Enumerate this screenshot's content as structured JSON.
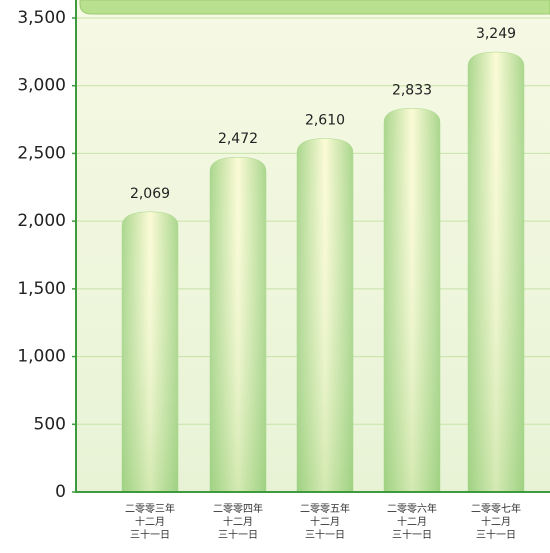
{
  "chart_data": {
    "type": "bar",
    "categories": [
      [
        "二零零三年",
        "十二月",
        "三十一日"
      ],
      [
        "二零零四年",
        "十二月",
        "三十一日"
      ],
      [
        "二零零五年",
        "十二月",
        "三十一日"
      ],
      [
        "二零零六年",
        "十二月",
        "三十一日"
      ],
      [
        "二零零七年",
        "十二月",
        "三十一日"
      ]
    ],
    "values": [
      2069,
      2472,
      2610,
      2833,
      3249
    ],
    "value_labels": [
      "2,069",
      "2,472",
      "2,610",
      "2,833",
      "3,249"
    ],
    "color": "#a9d68c",
    "ylim": [
      0,
      3500
    ],
    "yticks": [
      0,
      500,
      {
        "value": 1000,
        "label": "1,000"
      },
      {
        "value": 1500,
        "label": "1,500"
      },
      {
        "value": 2000,
        "label": "2,000"
      },
      {
        "value": 2500,
        "label": "2,500"
      },
      {
        "value": 3000,
        "label": "3,000"
      },
      {
        "value": 3500,
        "label": "3,500"
      }
    ],
    "grid": true
  }
}
